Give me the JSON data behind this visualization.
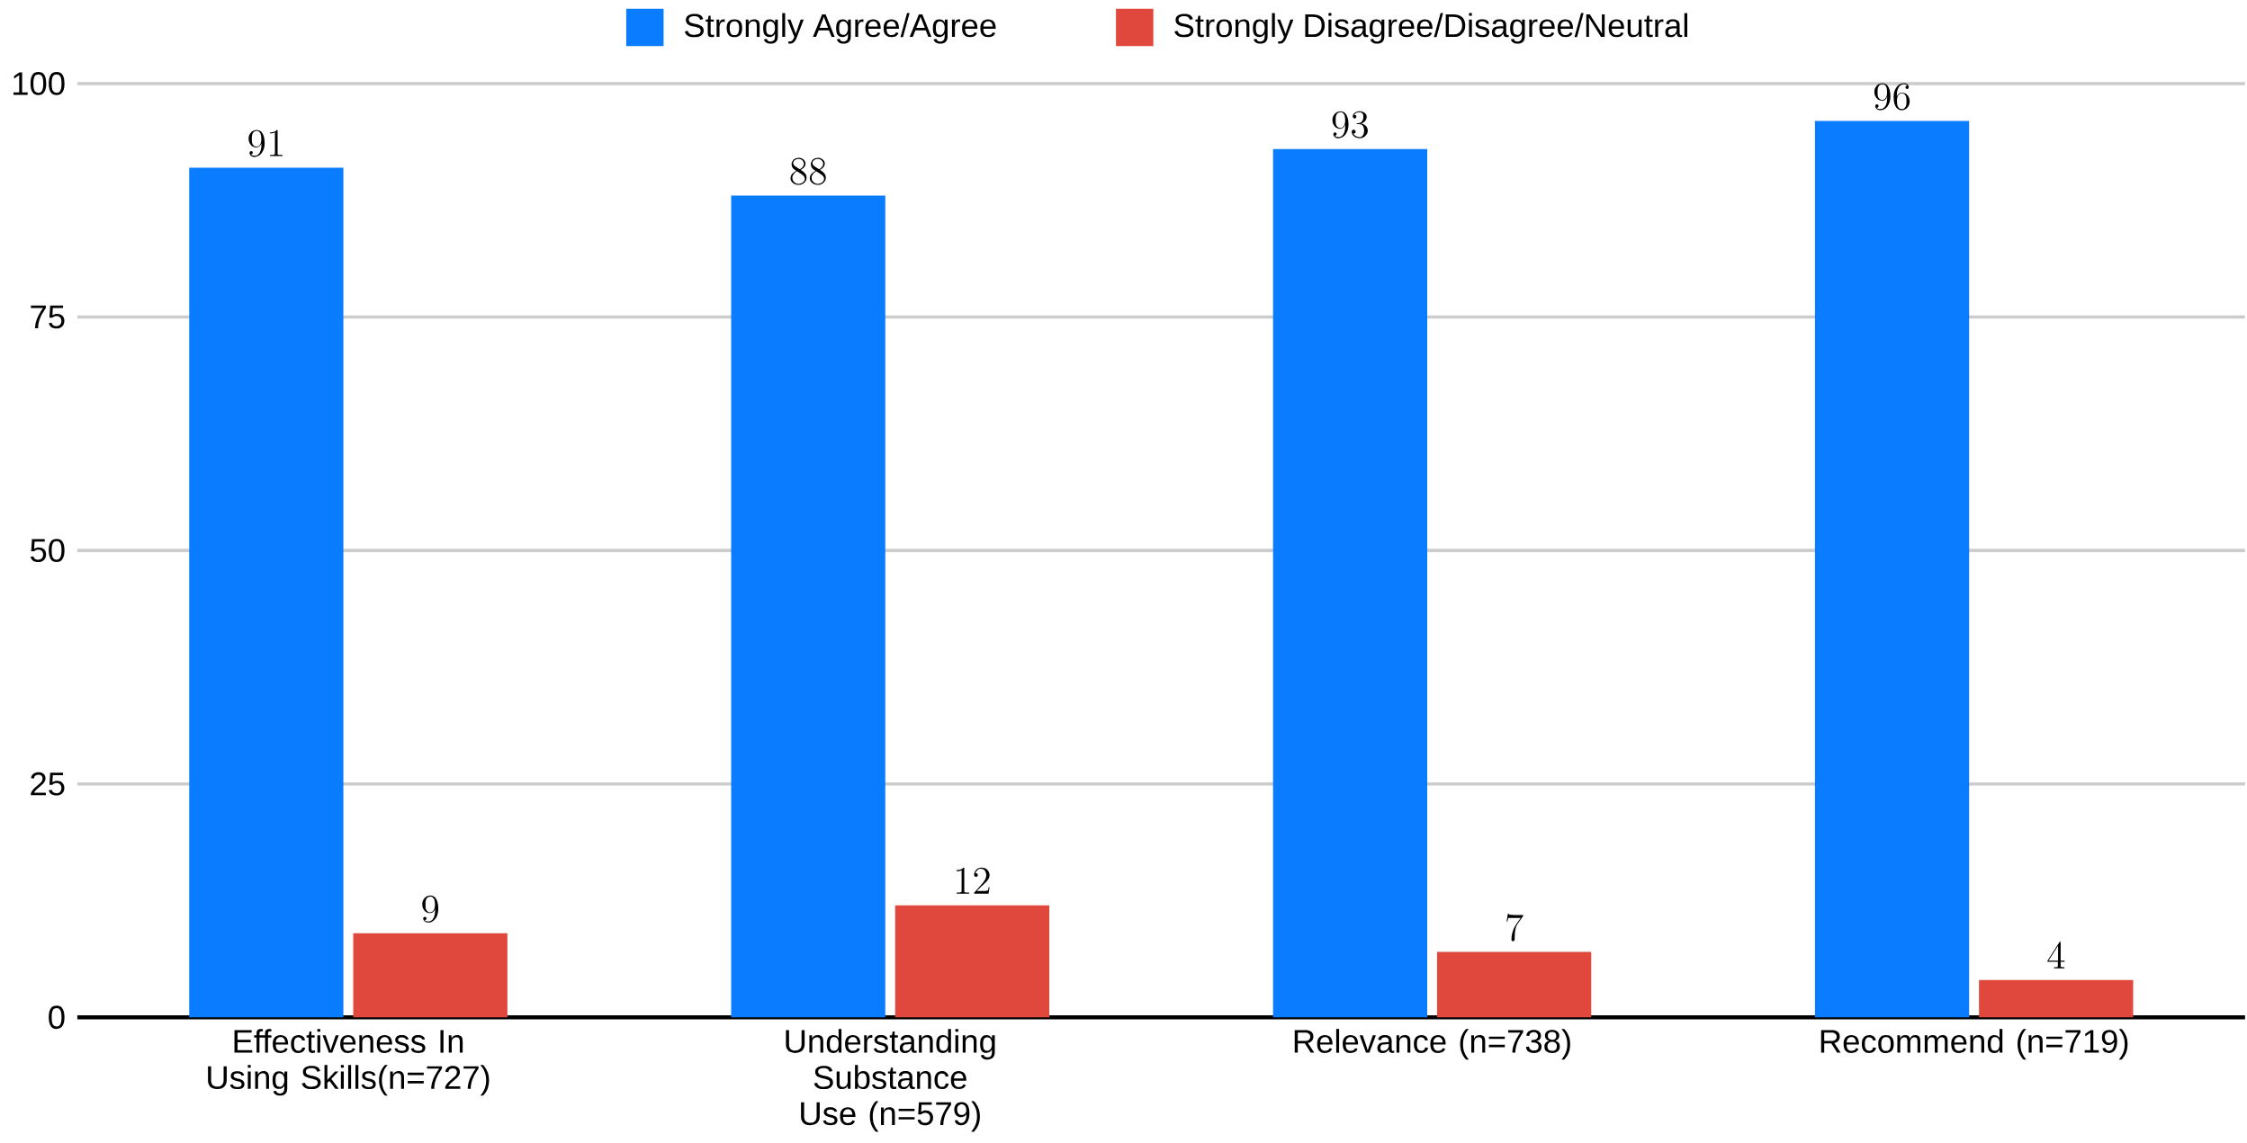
{
  "chart_data": {
    "type": "bar",
    "categories": [
      "Effectiveness In Using Skills(n=727)",
      "Understanding Substance Use (n=579)",
      "Relevance (n=738)",
      "Recommend (n=719)"
    ],
    "series": [
      {
        "name": "Strongly Agree/Agree",
        "color": "#0a7cff",
        "values": [
          91,
          88,
          93,
          96
        ]
      },
      {
        "name": "Strongly Disagree/Disagree/Neutral",
        "color": "#e0483e",
        "values": [
          9,
          12,
          7,
          4
        ]
      }
    ],
    "ylim": [
      0,
      100
    ],
    "yticks": [
      0,
      25,
      50,
      75,
      100
    ],
    "grid": "y",
    "legend": "top",
    "data_labels": true
  }
}
